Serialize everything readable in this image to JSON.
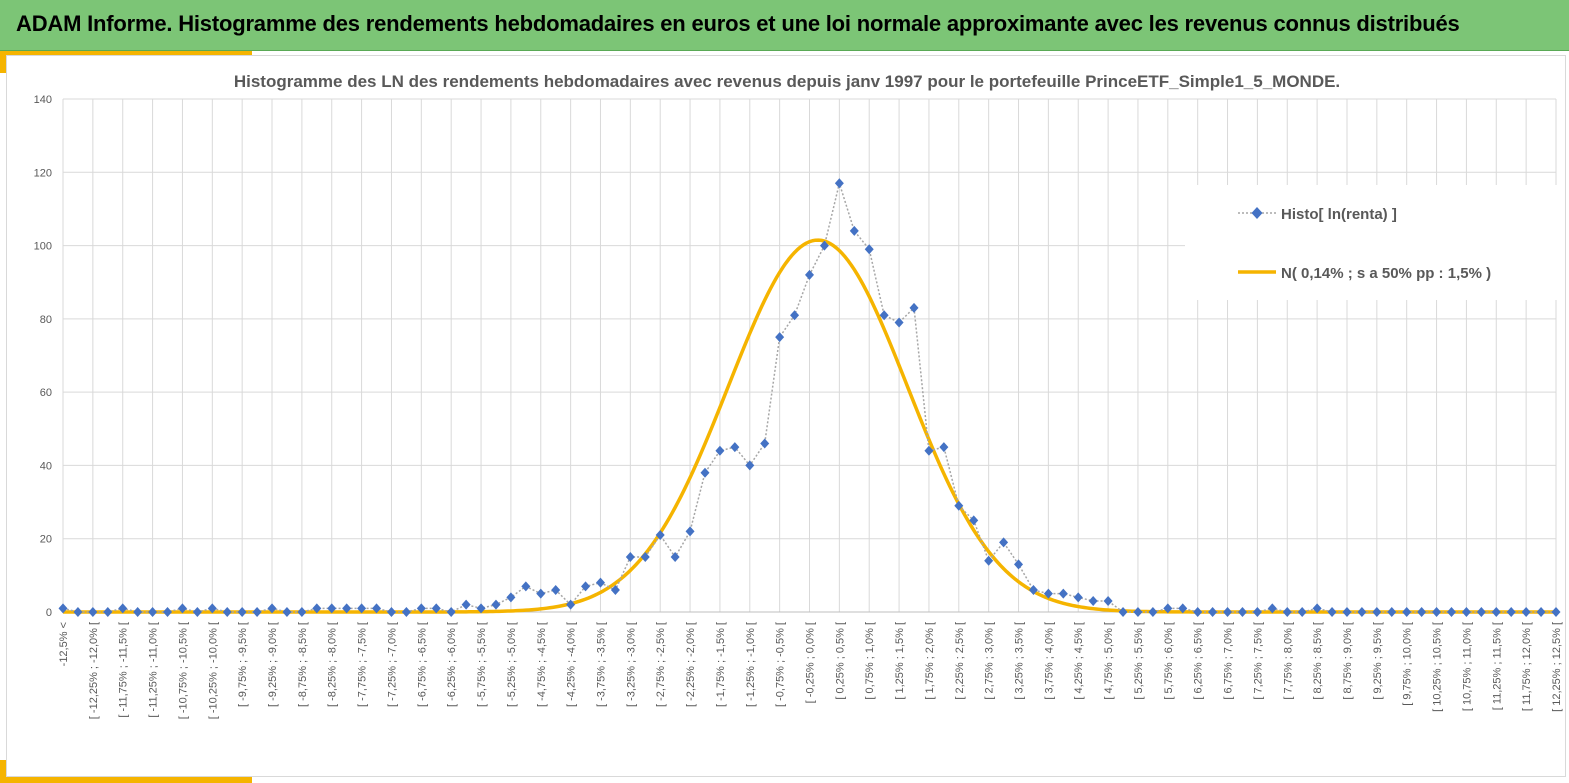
{
  "banner": {
    "title": "ADAM Informe. Histogramme des rendements hebdomadaires en euros et une loi normale approximante avec les revenus connus distribués"
  },
  "colors": {
    "banner_bg": "#7cc576",
    "accent": "#f5b400",
    "histogram_marker": "#4472c4",
    "histogram_line": "#a6a6a6",
    "normal_curve": "#f5b400",
    "grid": "#d9d9d9",
    "text": "#595959"
  },
  "chart_data": {
    "type": "line",
    "title": "Histogramme des LN des rendements hebdomadaires avec revenus depuis janv 1997 pour le portefeuille PrinceETF_Simple1_5_MONDE.",
    "xlabel": "",
    "ylabel": "",
    "ylim": [
      0,
      140
    ],
    "yticks": [
      0,
      20,
      40,
      60,
      80,
      100,
      120,
      140
    ],
    "grid": true,
    "legend_position": "right",
    "categories": [
      "-12,5% <",
      "[ -12,25% ; -12,0% [",
      "[ -11,75% ; -11,5% [",
      "[ -11,25% ; -11,0% [",
      "[ -10,75% ; -10,5% [",
      "[ -10,25% ; -10,0% [",
      "[ -9,75% ; -9,5% [",
      "[ -9,25% ; -9,0% [",
      "[ -8,75% ; -8,5% [",
      "[ -8,25% ; -8,0% [",
      "[ -7,75% ; -7,5% [",
      "[ -7,25% ; -7,0% [",
      "[ -6,75% ; -6,5% [",
      "[ -6,25% ; -6,0% [",
      "[ -5,75% ; -5,5% [",
      "[ -5,25% ; -5,0% [",
      "[ -4,75% ; -4,5% [",
      "[ -4,25% ; -4,0% [",
      "[ -3,75% ; -3,5% [",
      "[ -3,25% ; -3,0% [",
      "[ -2,75% ; -2,5% [",
      "[ -2,25% ; -2,0% [",
      "[ -1,75% ; -1,5% [",
      "[ -1,25% ; -1,0% [",
      "[ -0,75% ; -0,5% [",
      "[ -0,25% ; 0,0% [",
      "[ 0,25% ; 0,5% [",
      "[ 0,75% ; 1,0% [",
      "[ 1,25% ; 1,5% [",
      "[ 1,75% ; 2,0% [",
      "[ 2,25% ; 2,5% [",
      "[ 2,75% ; 3,0% [",
      "[ 3,25% ; 3,5% [",
      "[ 3,75% ; 4,0% [",
      "[ 4,25% ; 4,5% [",
      "[ 4,75% ; 5,0% [",
      "[ 5,25% ; 5,5% [",
      "[ 5,75% ; 6,0% [",
      "[ 6,25% ; 6,5% [",
      "[ 6,75% ; 7,0% [",
      "[ 7,25% ; 7,5% [",
      "[ 7,75% ; 8,0% [",
      "[ 8,25% ; 8,5% [",
      "[ 8,75% ; 9,0% [",
      "[ 9,25% ; 9,5% [",
      "[ 9,75% ; 10,0% [",
      "[ 10,25% ; 10,5% [",
      "[ 10,75% ; 11,0% [",
      "[ 11,25% ; 11,5% [",
      "[ 11,75% ; 12,0% [",
      "[ 12,25% ; 12,5% ["
    ],
    "series": [
      {
        "name": "Histo[ ln(renta) ]",
        "style": "dotted-line-diamond-markers",
        "x": [
          -12.5,
          -12.25,
          -12.0,
          -11.75,
          -11.5,
          -11.25,
          -11.0,
          -10.75,
          -10.5,
          -10.25,
          -10.0,
          -9.75,
          -9.5,
          -9.25,
          -9.0,
          -8.75,
          -8.5,
          -8.25,
          -8.0,
          -7.75,
          -7.5,
          -7.25,
          -7.0,
          -6.75,
          -6.5,
          -6.25,
          -6.0,
          -5.75,
          -5.5,
          -5.25,
          -5.0,
          -4.75,
          -4.5,
          -4.25,
          -4.0,
          -3.75,
          -3.5,
          -3.25,
          -3.0,
          -2.75,
          -2.5,
          -2.25,
          -2.0,
          -1.75,
          -1.5,
          -1.25,
          -1.0,
          -0.75,
          -0.5,
          -0.25,
          0.0,
          0.25,
          0.5,
          0.75,
          1.0,
          1.25,
          1.5,
          1.75,
          2.0,
          2.25,
          2.5,
          2.75,
          3.0,
          3.25,
          3.5,
          3.75,
          4.0,
          4.25,
          4.5,
          4.75,
          5.0,
          5.25,
          5.5,
          5.75,
          6.0,
          6.25,
          6.5,
          6.75,
          7.0,
          7.25,
          7.5,
          7.75,
          8.0,
          8.25,
          8.5,
          8.75,
          9.0,
          9.25,
          9.5,
          9.75,
          10.0,
          10.25,
          10.5,
          10.75,
          11.0,
          11.25,
          11.5,
          11.75,
          12.0,
          12.25,
          12.5
        ],
        "values": [
          1,
          0,
          0,
          0,
          1,
          0,
          0,
          0,
          1,
          0,
          1,
          0,
          0,
          0,
          1,
          0,
          0,
          1,
          1,
          1,
          1,
          1,
          0,
          0,
          1,
          1,
          0,
          2,
          1,
          2,
          4,
          7,
          5,
          6,
          2,
          7,
          8,
          6,
          15,
          15,
          21,
          15,
          22,
          38,
          44,
          45,
          40,
          46,
          75,
          81,
          92,
          100,
          117,
          104,
          99,
          81,
          79,
          83,
          44,
          45,
          29,
          25,
          14,
          19,
          13,
          6,
          5,
          5,
          4,
          3,
          3,
          0,
          0,
          0,
          1,
          1,
          0,
          0,
          0,
          0,
          0,
          1,
          0,
          0,
          1,
          0,
          0,
          0,
          0,
          0,
          0,
          0,
          0,
          0,
          0,
          0,
          0,
          0,
          0,
          0,
          0
        ]
      },
      {
        "name": "N( 0,14% ; s a 50% pp : 1,5% )",
        "style": "solid-line",
        "mean": 0.14,
        "peak": 101.5,
        "sigma": 1.5
      }
    ]
  }
}
